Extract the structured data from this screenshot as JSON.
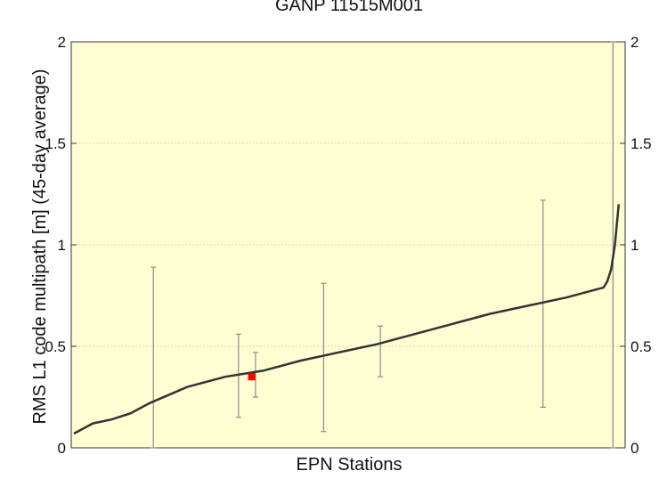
{
  "chart_data": {
    "type": "line",
    "title": "GANP 11515M001",
    "xlabel": "EPN Stations",
    "ylabel": "RMS L1 code multipath [m] (45-day average)",
    "ylim": [
      0,
      2
    ],
    "yticks": [
      0,
      0.5,
      1,
      1.5,
      2
    ],
    "ytick_labels": [
      "0",
      "0.5",
      "1",
      "1.5",
      "2"
    ],
    "grid": true,
    "colors": {
      "plot_background": "#fefed2",
      "grid": "#d8d8b8",
      "line": "#333333",
      "errorbar": "#8c8c8c",
      "highlight": "#ff0000"
    },
    "curve": {
      "x": [
        0,
        10,
        20,
        30,
        40,
        60,
        80,
        100,
        120,
        140,
        160,
        180,
        200,
        220,
        240,
        260,
        280,
        282,
        284,
        286,
        288
      ],
      "y": [
        0.07,
        0.12,
        0.14,
        0.17,
        0.22,
        0.3,
        0.35,
        0.38,
        0.43,
        0.47,
        0.51,
        0.56,
        0.61,
        0.66,
        0.7,
        0.74,
        0.79,
        0.82,
        0.88,
        1.0,
        1.2
      ]
    },
    "error_bars": [
      {
        "x": 42,
        "low": 0.0,
        "high": 0.89
      },
      {
        "x": 87,
        "low": 0.15,
        "high": 0.56
      },
      {
        "x": 96,
        "low": 0.25,
        "high": 0.47
      },
      {
        "x": 132,
        "low": 0.08,
        "high": 0.81
      },
      {
        "x": 162,
        "low": 0.35,
        "high": 0.6
      },
      {
        "x": 248,
        "low": 0.2,
        "high": 1.22
      },
      {
        "x": 285,
        "low": 0.0,
        "high": 2.0
      }
    ],
    "highlight_point": {
      "x": 94,
      "y": 0.35
    }
  }
}
